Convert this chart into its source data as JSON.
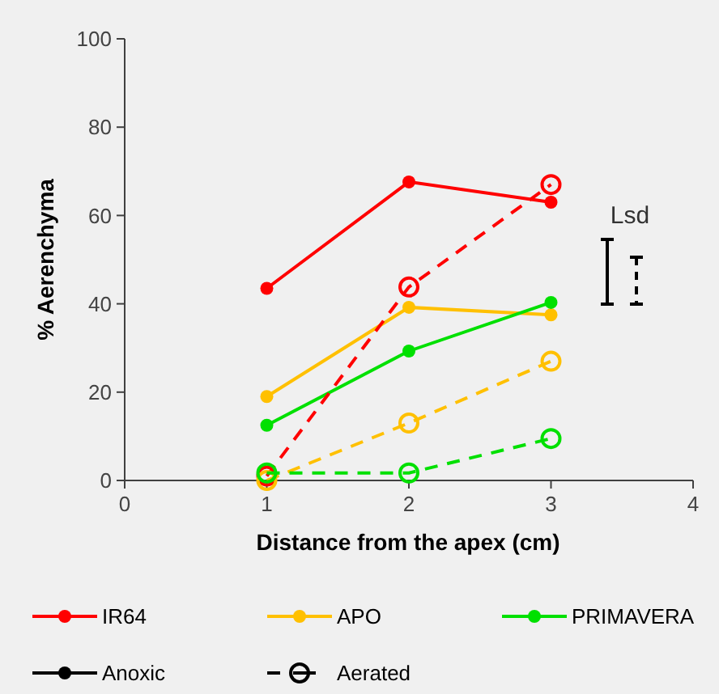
{
  "chart_data": {
    "type": "line",
    "xlabel": "Distance from the apex (cm)",
    "ylabel": "% Aerenchyma",
    "x": [
      1,
      2,
      3
    ],
    "xlim": [
      0,
      4
    ],
    "xticks": [
      0,
      1,
      2,
      3,
      4
    ],
    "ylim": [
      0,
      100
    ],
    "yticks": [
      0,
      20,
      40,
      60,
      80,
      100
    ],
    "grid": false,
    "legend": "bottom",
    "marker": "circle",
    "series": [
      {
        "name": "IR64",
        "color": "#ff0000",
        "values": [
          43.5,
          67.6,
          63
        ],
        "line_style": "solid"
      },
      {
        "name": "APO",
        "color": "#ffc000",
        "values": [
          19,
          39.2,
          37.5
        ],
        "line_style": "solid"
      },
      {
        "name": "PRIMAVERA",
        "color": "#00e000",
        "values": [
          12.5,
          29.3,
          40.3
        ],
        "line_style": "solid"
      },
      {
        "color": "#ff0000",
        "values": [
          1,
          43.8,
          67
        ],
        "line_style": "dashed"
      },
      {
        "color": "#ffc000",
        "values": [
          0,
          13,
          27
        ],
        "line_style": "dashed"
      },
      {
        "color": "#00e000",
        "values": [
          1.7,
          1.7,
          9.5
        ],
        "line_style": "dashed"
      },
      {
        "name": "Anoxic",
        "color": "#000000",
        "values": [
          null,
          null,
          null
        ],
        "line_style": "solid"
      },
      {
        "name": "Aerated",
        "color": "#000000",
        "values": [
          null,
          null,
          null
        ],
        "line_style": "dashed"
      }
    ],
    "annotations": [
      "Lsd"
    ]
  }
}
